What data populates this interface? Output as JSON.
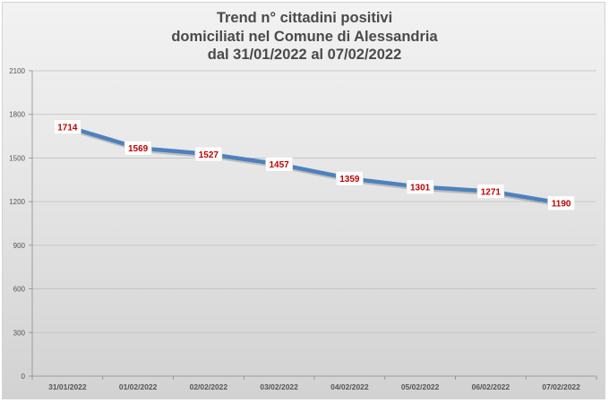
{
  "chart_data": {
    "type": "line",
    "title": [
      "Trend n° cittadini positivi",
      "domiciliati nel Comune di Alessandria",
      "dal 31/01/2022 al 07/02/2022"
    ],
    "xlabel": "",
    "ylabel": "",
    "categories": [
      "31/01/2022",
      "01/02/2022",
      "02/02/2022",
      "03/02/2022",
      "04/02/2022",
      "05/02/2022",
      "06/02/2022",
      "07/02/2022"
    ],
    "series": [
      {
        "values": [
          1714,
          1569,
          1527,
          1457,
          1359,
          1301,
          1271,
          1190
        ],
        "color": "#4e81bd"
      }
    ],
    "ylim": [
      0,
      2100
    ],
    "yticks": [
      0,
      300,
      600,
      900,
      1200,
      1500,
      1800,
      2100
    ],
    "grid": true,
    "legend": "none",
    "data_labels": true,
    "label_color": "#c00000"
  }
}
